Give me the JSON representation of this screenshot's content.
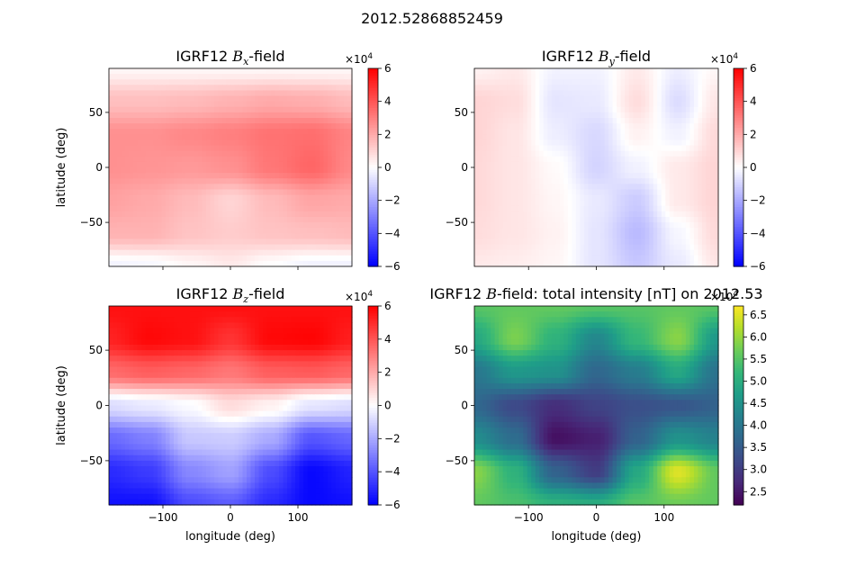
{
  "figure": {
    "suptitle": "2012.52868852459"
  },
  "chart_data": [
    {
      "type": "heatmap",
      "title_prefix": "IGRF12 ",
      "title_symbol": "B",
      "title_subscript": "x",
      "title_suffix": "-field",
      "xlabel": "",
      "ylabel": "latitude (deg)",
      "xlim": [
        -180,
        180
      ],
      "ylim": [
        -90,
        90
      ],
      "x_ticks": [
        -100,
        0,
        100
      ],
      "x_tick_labels_visible": false,
      "y_ticks": [
        -50,
        0,
        50
      ],
      "y_tick_labels": [
        "−50",
        "0",
        "50"
      ],
      "colormap": "bwr",
      "colorbar": {
        "range": [
          -6,
          6
        ],
        "ticks": [
          -6,
          -4,
          -2,
          0,
          2,
          4,
          6
        ],
        "tick_labels": [
          "−6",
          "−4",
          "−2",
          "0",
          "2",
          "4",
          "6"
        ],
        "offset_base": "×10",
        "offset_exp": "4"
      },
      "grid": {
        "lons": [
          -180,
          -120,
          -60,
          0,
          60,
          120,
          180
        ],
        "lats": [
          90,
          60,
          30,
          0,
          -30,
          -60,
          -90
        ],
        "values": [
          [
            0.2,
            0.2,
            0.2,
            0.2,
            0.2,
            0.2,
            0.2
          ],
          [
            1.5,
            1.5,
            1.6,
            1.8,
            2.0,
            1.9,
            1.6
          ],
          [
            2.6,
            2.6,
            2.8,
            3.0,
            3.3,
            3.4,
            2.9
          ],
          [
            2.6,
            2.5,
            2.4,
            2.6,
            3.2,
            3.6,
            2.8
          ],
          [
            2.2,
            2.0,
            1.6,
            1.0,
            1.6,
            2.1,
            2.0
          ],
          [
            1.8,
            1.8,
            1.4,
            1.2,
            1.4,
            1.5,
            1.6
          ],
          [
            -0.3,
            -0.2,
            0.2,
            0.5,
            0.0,
            -0.3,
            -0.3
          ]
        ]
      }
    },
    {
      "type": "heatmap",
      "title_prefix": "IGRF12 ",
      "title_symbol": "B",
      "title_subscript": "y",
      "title_suffix": "-field",
      "xlabel": "",
      "ylabel": "",
      "xlim": [
        -180,
        180
      ],
      "ylim": [
        -90,
        90
      ],
      "x_ticks": [
        -100,
        0,
        100
      ],
      "x_tick_labels_visible": false,
      "y_ticks": [
        -50,
        0,
        50
      ],
      "y_tick_labels": [
        "−50",
        "0",
        "50"
      ],
      "colormap": "bwr",
      "colorbar": {
        "range": [
          -6,
          6
        ],
        "ticks": [
          -6,
          -4,
          -2,
          0,
          2,
          4,
          6
        ],
        "tick_labels": [
          "−6",
          "−4",
          "−2",
          "0",
          "2",
          "4",
          "6"
        ],
        "offset_base": "×10",
        "offset_exp": "4"
      },
      "grid": {
        "lons": [
          -180,
          -120,
          -60,
          0,
          60,
          120,
          180
        ],
        "lats": [
          90,
          60,
          30,
          0,
          -30,
          -60,
          -90
        ],
        "values": [
          [
            0.3,
            0.5,
            -0.3,
            -0.3,
            0.5,
            -0.4,
            0.2
          ],
          [
            1.0,
            0.8,
            -0.6,
            -0.5,
            0.8,
            -0.8,
            0.6
          ],
          [
            1.0,
            0.6,
            -0.4,
            -0.9,
            0.3,
            -0.3,
            0.9
          ],
          [
            0.9,
            0.6,
            0.1,
            -1.0,
            -0.3,
            0.5,
            1.0
          ],
          [
            0.9,
            0.6,
            0.2,
            -0.5,
            -1.2,
            0.5,
            1.0
          ],
          [
            0.8,
            0.6,
            0.3,
            -0.6,
            -1.6,
            -0.2,
            0.9
          ],
          [
            0.5,
            0.4,
            0.2,
            -0.6,
            -1.3,
            -0.5,
            0.6
          ]
        ]
      }
    },
    {
      "type": "heatmap",
      "title_prefix": "IGRF12 ",
      "title_symbol": "B",
      "title_subscript": "z",
      "title_suffix": "-field",
      "xlabel": "longitude (deg)",
      "ylabel": "latitude (deg)",
      "xlim": [
        -180,
        180
      ],
      "ylim": [
        -90,
        90
      ],
      "x_ticks": [
        -100,
        0,
        100
      ],
      "x_tick_labels": [
        "−100",
        "0",
        "100"
      ],
      "y_ticks": [
        -50,
        0,
        50
      ],
      "y_tick_labels": [
        "−50",
        "0",
        "50"
      ],
      "colormap": "bwr",
      "colorbar": {
        "range": [
          -6,
          6
        ],
        "ticks": [
          -6,
          -4,
          -2,
          0,
          2,
          4,
          6
        ],
        "tick_labels": [
          "−6",
          "−4",
          "−2",
          "0",
          "2",
          "4",
          "6"
        ],
        "offset_base": "×10",
        "offset_exp": "4"
      },
      "grid": {
        "lons": [
          -180,
          -120,
          -60,
          0,
          60,
          120,
          180
        ],
        "lats": [
          90,
          60,
          30,
          0,
          -30,
          -60,
          -90
        ],
        "values": [
          [
            5.6,
            5.6,
            5.6,
            5.6,
            5.6,
            5.6,
            5.6
          ],
          [
            5.2,
            5.8,
            5.6,
            4.8,
            5.8,
            5.9,
            5.3
          ],
          [
            3.5,
            3.8,
            3.6,
            3.2,
            3.8,
            3.9,
            3.6
          ],
          [
            -0.8,
            -0.5,
            -0.1,
            0.8,
            0.3,
            -0.6,
            -0.8
          ],
          [
            -3.5,
            -3.0,
            -1.3,
            -1.2,
            -2.0,
            -4.0,
            -3.6
          ],
          [
            -5.0,
            -4.6,
            -2.8,
            -2.2,
            -4.2,
            -5.8,
            -5.2
          ],
          [
            -5.6,
            -5.6,
            -4.2,
            -3.8,
            -5.0,
            -5.8,
            -5.6
          ]
        ]
      }
    },
    {
      "type": "heatmap",
      "title_prefix": "IGRF12 ",
      "title_symbol": "B",
      "title_subscript": "",
      "title_suffix": "-field: total intensity [nT] on 2012.53",
      "xlabel": "longitude (deg)",
      "ylabel": "",
      "xlim": [
        -180,
        180
      ],
      "ylim": [
        -90,
        90
      ],
      "x_ticks": [
        -100,
        0,
        100
      ],
      "x_tick_labels": [
        "−100",
        "0",
        "100"
      ],
      "y_ticks": [
        -50,
        0,
        50
      ],
      "y_tick_labels": [
        "−50",
        "0",
        "50"
      ],
      "colormap": "viridis",
      "colorbar": {
        "range": [
          2.2,
          6.7
        ],
        "ticks": [
          2.5,
          3.0,
          3.5,
          4.0,
          4.5,
          5.0,
          5.5,
          6.0,
          6.5
        ],
        "tick_labels": [
          "2.5",
          "3.0",
          "3.5",
          "4.0",
          "4.5",
          "5.0",
          "5.5",
          "6.0",
          "6.5"
        ],
        "offset_base": "×10",
        "offset_exp": "4"
      },
      "grid": {
        "lons": [
          -180,
          -120,
          -60,
          0,
          60,
          120,
          180
        ],
        "lats": [
          90,
          60,
          30,
          0,
          -30,
          -60,
          -90
        ],
        "values": [
          [
            5.5,
            5.6,
            5.6,
            5.5,
            5.5,
            5.6,
            5.5
          ],
          [
            4.9,
            5.8,
            5.1,
            4.3,
            5.2,
            5.9,
            4.6
          ],
          [
            4.0,
            4.6,
            4.5,
            3.7,
            4.1,
            4.9,
            3.9
          ],
          [
            3.7,
            3.2,
            2.8,
            3.1,
            3.3,
            3.4,
            3.6
          ],
          [
            4.4,
            3.8,
            2.4,
            2.6,
            3.6,
            4.5,
            4.2
          ],
          [
            5.9,
            5.1,
            3.6,
            3.0,
            4.9,
            6.5,
            5.6
          ],
          [
            5.6,
            5.4,
            5.1,
            5.0,
            5.5,
            5.7,
            5.6
          ]
        ]
      }
    }
  ]
}
